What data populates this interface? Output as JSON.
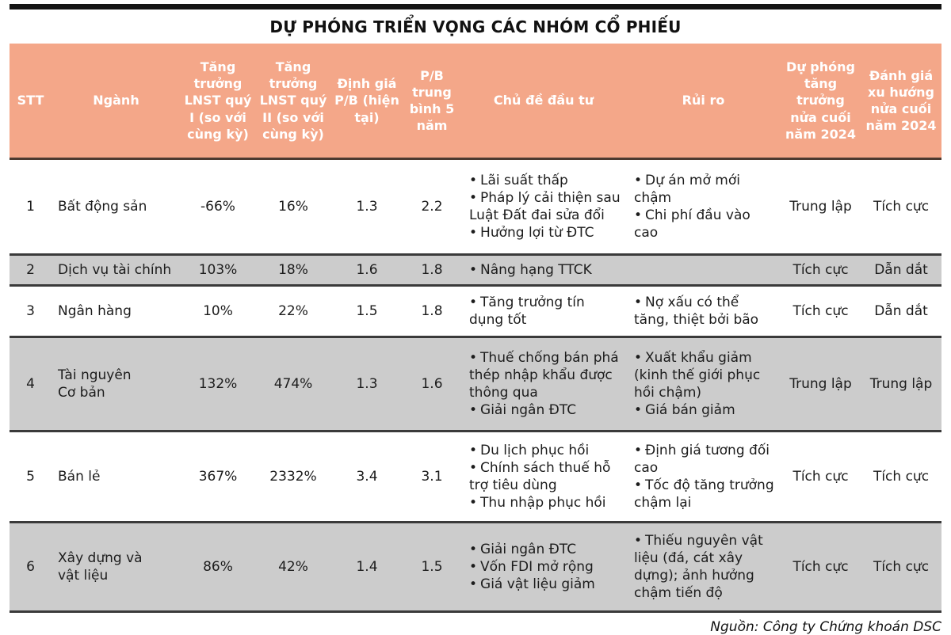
{
  "title": "DỰ PHÓNG TRIỂN VỌNG CÁC NHÓM CỔ PHIẾU",
  "source_note": "Nguồn: Công ty Chứng khoán DSC",
  "colors": {
    "header_bg": "#F4A789",
    "header_text": "#FFFFFF",
    "row_alt_bg": "#CCCCCC",
    "separator": "#3A3A3A",
    "top_rule": "#151515",
    "body_text": "#1C1C1C"
  },
  "table": {
    "headers": [
      "STT",
      "Ngành",
      "Tăng trưởng LNST quý I (so với cùng kỳ)",
      "Tăng trưởng LNST quý II (so với cùng kỳ)",
      "Định giá P/B (hiện tại)",
      "P/B trung bình 5 năm",
      "Chủ đề đầu tư",
      "Rủi ro",
      "Dự phóng tăng trưởng nửa cuối năm 2024",
      "Đánh giá xu hướng nửa cuối năm 2024"
    ],
    "rows": [
      {
        "stt": "1",
        "nganh": "Bất động sản",
        "q1": "-66%",
        "q2": "16%",
        "pb_hien_tai": "1.3",
        "pb_tb_5nam": "2.2",
        "chu_de": [
          "Lãi suất thấp",
          "Pháp lý cải thiện sau Luật Đất đai sửa đổi",
          "Hưởng lợi từ ĐTC"
        ],
        "rui_ro": [
          "Dự án mở mới chậm",
          "Chi phí đầu vào cao"
        ],
        "du_phong": "Trung lập",
        "danh_gia": "Tích cực",
        "shaded": false
      },
      {
        "stt": "2",
        "nganh": "Dịch vụ tài chính",
        "q1": "103%",
        "q2": "18%",
        "pb_hien_tai": "1.6",
        "pb_tb_5nam": "1.8",
        "chu_de": [
          "Nâng hạng TTCK"
        ],
        "rui_ro": [],
        "du_phong": "Tích cực",
        "danh_gia": "Dẫn dắt",
        "shaded": true
      },
      {
        "stt": "3",
        "nganh": "Ngân hàng",
        "q1": "10%",
        "q2": "22%",
        "pb_hien_tai": "1.5",
        "pb_tb_5nam": "1.8",
        "chu_de": [
          "Tăng trưởng tín dụng tốt"
        ],
        "rui_ro": [
          "Nợ xấu có thể tăng, thiệt bởi bão"
        ],
        "du_phong": "Tích cực",
        "danh_gia": "Dẫn dắt",
        "shaded": false
      },
      {
        "stt": "4",
        "nganh": "Tài nguyên\nCơ bản",
        "q1": "132%",
        "q2": "474%",
        "pb_hien_tai": "1.3",
        "pb_tb_5nam": "1.6",
        "chu_de": [
          "Thuế chống bán phá thép nhập khẩu được thông qua",
          "Giải ngân ĐTC"
        ],
        "rui_ro": [
          "Xuất khẩu giảm (kinh thế giới phục hồi chậm)",
          "Giá bán giảm"
        ],
        "du_phong": "Trung lập",
        "danh_gia": "Trung lập",
        "shaded": true
      },
      {
        "stt": "5",
        "nganh": "Bán lẻ",
        "q1": "367%",
        "q2": "2332%",
        "pb_hien_tai": "3.4",
        "pb_tb_5nam": "3.1",
        "chu_de": [
          "Du lịch phục hồi",
          "Chính sách thuế hỗ trợ tiêu dùng",
          "Thu nhập phục hồi"
        ],
        "rui_ro": [
          "Định giá tương đối cao",
          "Tốc độ tăng trưởng chậm lại"
        ],
        "du_phong": "Tích cực",
        "danh_gia": "Tích cực",
        "shaded": false
      },
      {
        "stt": "6",
        "nganh": "Xây dựng và\nvật liệu",
        "q1": "86%",
        "q2": "42%",
        "pb_hien_tai": "1.4",
        "pb_tb_5nam": "1.5",
        "chu_de": [
          "Giải ngân ĐTC",
          "Vốn FDI mở rộng",
          "Giá vật liệu giảm"
        ],
        "rui_ro": [
          "Thiếu nguyên vật liệu (đá, cát xây dựng); ảnh hưởng chậm tiến độ"
        ],
        "du_phong": "Tích cực",
        "danh_gia": "Tích cực",
        "shaded": true
      }
    ]
  }
}
